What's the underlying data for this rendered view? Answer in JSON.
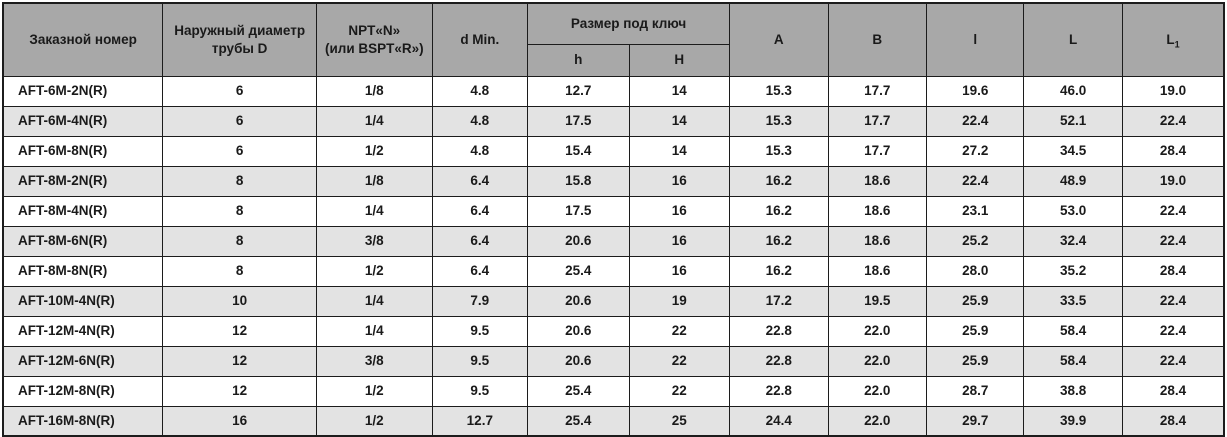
{
  "colors": {
    "header_bg": "#a8a8a8",
    "row_alt_bg": "#e3e3e3",
    "row_bg": "#ffffff",
    "border": "#1c1c1c",
    "text": "#1a1a1a"
  },
  "table": {
    "header": {
      "order_number": "Заказной номер",
      "outer_diameter": "Наружный диаметр трубы D",
      "thread_line1": "NPT«N»",
      "thread_line2": "(или BSPT«R»)",
      "d_min": "d Min.",
      "wrench_size": "Размер под ключ",
      "h_small": "h",
      "h_big": "H",
      "a": "A",
      "b": "B",
      "l_small": "l",
      "l_big": "L",
      "l1_base": "L",
      "l1_sub": "1"
    },
    "rows": [
      [
        "AFT-6M-2N(R)",
        "6",
        "1/8",
        "4.8",
        "12.7",
        "14",
        "15.3",
        "17.7",
        "19.6",
        "46.0",
        "19.0"
      ],
      [
        "AFT-6M-4N(R)",
        "6",
        "1/4",
        "4.8",
        "17.5",
        "14",
        "15.3",
        "17.7",
        "22.4",
        "52.1",
        "22.4"
      ],
      [
        "AFT-6M-8N(R)",
        "6",
        "1/2",
        "4.8",
        "15.4",
        "14",
        "15.3",
        "17.7",
        "27.2",
        "34.5",
        "28.4"
      ],
      [
        "AFT-8M-2N(R)",
        "8",
        "1/8",
        "6.4",
        "15.8",
        "16",
        "16.2",
        "18.6",
        "22.4",
        "48.9",
        "19.0"
      ],
      [
        "AFT-8M-4N(R)",
        "8",
        "1/4",
        "6.4",
        "17.5",
        "16",
        "16.2",
        "18.6",
        "23.1",
        "53.0",
        "22.4"
      ],
      [
        "AFT-8M-6N(R)",
        "8",
        "3/8",
        "6.4",
        "20.6",
        "16",
        "16.2",
        "18.6",
        "25.2",
        "32.4",
        "22.4"
      ],
      [
        "AFT-8M-8N(R)",
        "8",
        "1/2",
        "6.4",
        "25.4",
        "16",
        "16.2",
        "18.6",
        "28.0",
        "35.2",
        "28.4"
      ],
      [
        "AFT-10M-4N(R)",
        "10",
        "1/4",
        "7.9",
        "20.6",
        "19",
        "17.2",
        "19.5",
        "25.9",
        "33.5",
        "22.4"
      ],
      [
        "AFT-12M-4N(R)",
        "12",
        "1/4",
        "9.5",
        "20.6",
        "22",
        "22.8",
        "22.0",
        "25.9",
        "58.4",
        "22.4"
      ],
      [
        "AFT-12M-6N(R)",
        "12",
        "3/8",
        "9.5",
        "20.6",
        "22",
        "22.8",
        "22.0",
        "25.9",
        "58.4",
        "22.4"
      ],
      [
        "AFT-12M-8N(R)",
        "12",
        "1/2",
        "9.5",
        "25.4",
        "22",
        "22.8",
        "22.0",
        "28.7",
        "38.8",
        "28.4"
      ],
      [
        "AFT-16M-8N(R)",
        "16",
        "1/2",
        "12.7",
        "25.4",
        "25",
        "24.4",
        "22.0",
        "29.7",
        "39.9",
        "28.4"
      ]
    ]
  }
}
